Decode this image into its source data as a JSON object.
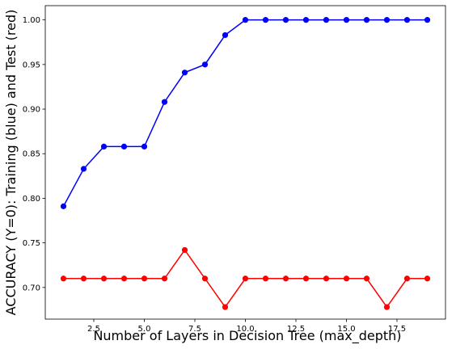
{
  "chart_data": {
    "type": "line",
    "title": "",
    "xlabel": "Number of Layers in Decision Tree (max_depth)",
    "ylabel": "ACCURACY (Y=0): Training (blue) and Test (red)",
    "xlim": [
      0.1,
      19.9
    ],
    "ylim": [
      0.6645,
      1.016
    ],
    "xticks": [
      2.5,
      5.0,
      7.5,
      10.0,
      12.5,
      15.0,
      17.5
    ],
    "xtick_labels": [
      "2.5",
      "5.0",
      "7.5",
      "10.0",
      "12.5",
      "15.0",
      "17.5"
    ],
    "yticks": [
      0.7,
      0.75,
      0.8,
      0.85,
      0.9,
      0.95,
      1.0
    ],
    "ytick_labels": [
      "0.70",
      "0.75",
      "0.80",
      "0.85",
      "0.90",
      "0.95",
      "1.00"
    ],
    "grid": false,
    "x": [
      1,
      2,
      3,
      4,
      5,
      6,
      7,
      8,
      9,
      10,
      11,
      12,
      13,
      14,
      15,
      16,
      17,
      18,
      19
    ],
    "series": [
      {
        "color": "#0000ff",
        "values": [
          0.791,
          0.833,
          0.858,
          0.858,
          0.858,
          0.908,
          0.941,
          0.95,
          0.983,
          1.0,
          1.0,
          1.0,
          1.0,
          1.0,
          1.0,
          1.0,
          1.0,
          1.0,
          1.0
        ]
      },
      {
        "color": "#ff0000",
        "values": [
          0.71,
          0.71,
          0.71,
          0.71,
          0.71,
          0.71,
          0.742,
          0.71,
          0.678,
          0.71,
          0.71,
          0.71,
          0.71,
          0.71,
          0.71,
          0.71,
          0.678,
          0.71,
          0.71
        ]
      }
    ]
  }
}
